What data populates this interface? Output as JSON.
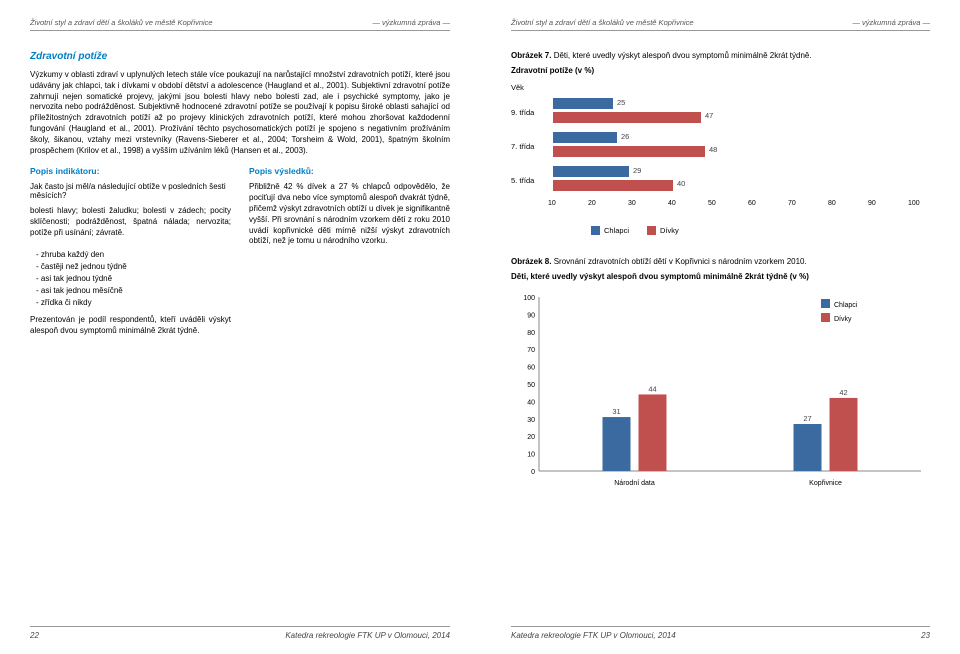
{
  "header": {
    "title": "Životní styl a zdraví dětí a školáků ve městě Kopřivnice",
    "report": "— výzkumná zpráva —"
  },
  "left": {
    "heading": "Zdravotní potíže",
    "para": "Výzkumy v oblasti zdraví v uplynulých letech stále více poukazují na narůstající množství zdravotních potíží, které jsou udávány jak chlapci, tak i dívkami v období dětství a adolescence (Haugland et al., 2001). Subjektivní zdravotní potíže zahrnují nejen somatické projevy, jakými jsou bolesti hlavy nebo bolesti zad, ale i psychické symptomy, jako je nervozita nebo podrážděnost. Subjektivně hodnocené zdravotní potíže se používají k popisu široké oblasti sahající od příležitostných zdravotních potíží až po projevy klinických zdravotních potíží, které mohou zhoršovat každodenní fungování (Haugland et al., 2001). Prožívání těchto psychosomatických potíží je spojeno s negativním prožíváním školy, šikanou, vztahy mezi vrstevníky (Ravens-Sieberer et al., 2004; Torsheim & Wold, 2001), špatným školním prospěchem (Krilov et al., 1998) a vyšším užíváním léků (Hansen et al., 2003).",
    "col1": {
      "heading": "Popis indikátoru:",
      "q": "Jak často jsi měl/a následující obtíže v posledních šesti měsících?",
      "items": "bolesti hlavy; bolesti žaludku; bolesti v zádech; pocity sklíčenosti; podrážděnost, špatná nálada; nervozita; potíže při usínání; závratě.",
      "opts": [
        "- zhruba každý den",
        "- častěji než jednou týdně",
        "- asi tak jednou týdně",
        "- asi tak jednou měsíčně",
        "- zřídka či nikdy"
      ],
      "foot": "Prezentován je podíl respondentů, kteří uváděli výskyt alespoň dvou symptomů minimálně 2krát týdně."
    },
    "col2": {
      "heading": "Popis výsledků:",
      "text": "Přibližně 42 % dívek a 27 % chlapců odpovědělo, že pociťují dva nebo více symptomů alespoň dvakrát týdně, přičemž výskyt zdravotních obtíží u dívek je signifikantně vyšší. Při srovnání s národním vzorkem dětí z roku 2010 uvádí kopřivnické děti mírně nižší výskyt zdravotních obtíží, než je tomu u národního vzorku."
    }
  },
  "right": {
    "fig7": {
      "caption_a": "Obrázek 7.",
      "caption_b": "Děti, které uvedly výskyt alespoň dvou symptomů minimálně 2krát týdně.",
      "subtitle": "Zdravotní potíže (v %)",
      "ylabel": "Věk",
      "categories": [
        "9. třída",
        "7. třída",
        "5. třída"
      ],
      "series1": [
        25,
        26,
        29
      ],
      "series2": [
        47,
        48,
        40
      ],
      "xlim": [
        10,
        100
      ],
      "xtick_step": 10,
      "color1": "#3b6aa0",
      "color2": "#c0504d",
      "legend": [
        "Chlapci",
        "Dívky"
      ]
    },
    "fig8": {
      "caption_a": "Obrázek 8.",
      "caption_b": "Srovnání zdravotních obtíží dětí v Kopřivnici s národním vzorkem 2010.",
      "subtitle": "Děti, které uvedly výskyt alespoň dvou symptomů minimálně 2krát týdně (v %)",
      "type": "bar",
      "categories": [
        "Národní data",
        "Kopřivnice"
      ],
      "series": [
        {
          "name": "Chlapci",
          "color": "#3b6aa0",
          "values": [
            31,
            27
          ]
        },
        {
          "name": "Dívky",
          "color": "#c0504d",
          "values": [
            44,
            42
          ]
        }
      ],
      "ylim": [
        0,
        100
      ],
      "ytick_step": 10,
      "legend": [
        "Chlapci",
        "Dívky"
      ]
    }
  },
  "footer": {
    "left_num": "22",
    "right_num": "23",
    "credit": "Katedra rekreologie FTK UP v Olomouci, 2014"
  }
}
